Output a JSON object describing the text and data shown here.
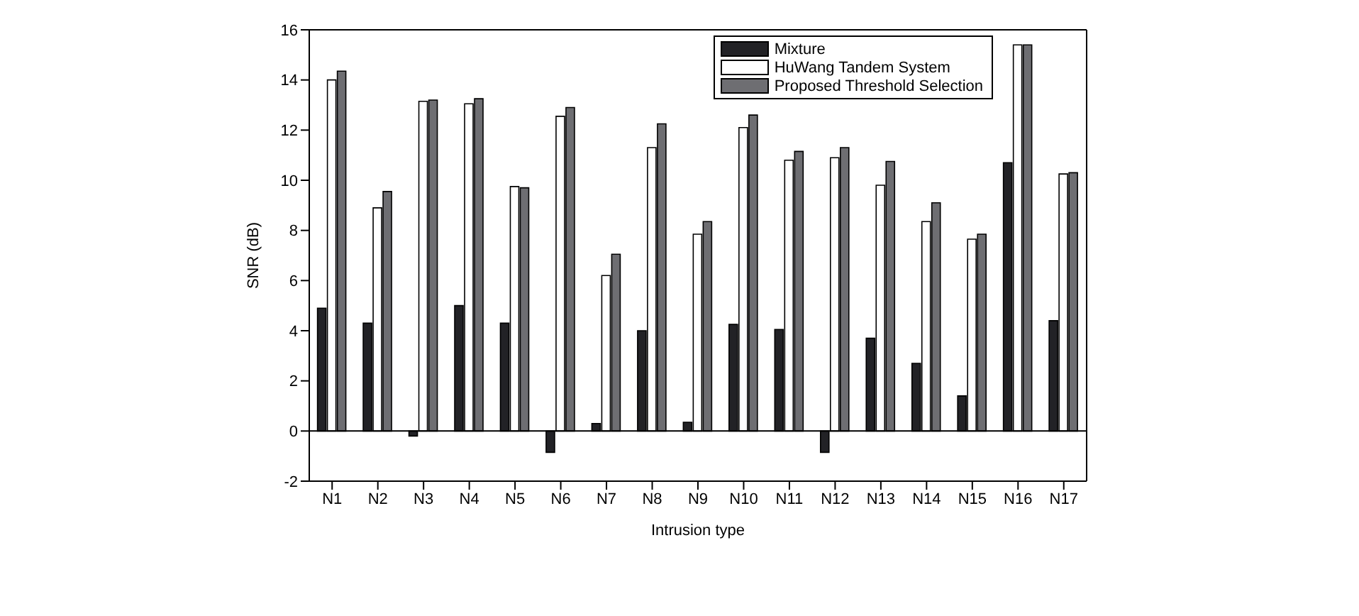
{
  "chart_data": {
    "type": "bar",
    "xlabel": "Intrusion type",
    "ylabel": "SNR (dB)",
    "categories": [
      "N1",
      "N2",
      "N3",
      "N4",
      "N5",
      "N6",
      "N7",
      "N8",
      "N9",
      "N10",
      "N11",
      "N12",
      "N13",
      "N14",
      "N15",
      "N16",
      "N17"
    ],
    "series": [
      {
        "name": "Mixture",
        "color": "#222226",
        "values": [
          4.9,
          4.3,
          -0.2,
          5.0,
          4.3,
          -0.85,
          0.3,
          4.0,
          0.35,
          4.25,
          4.05,
          -0.85,
          3.7,
          2.7,
          1.4,
          10.7,
          4.4
        ]
      },
      {
        "name": "HuWang Tandem System",
        "color": "#ffffff",
        "values": [
          14.0,
          8.9,
          13.15,
          13.05,
          9.75,
          12.55,
          6.2,
          11.3,
          7.85,
          12.1,
          10.8,
          10.9,
          9.8,
          8.35,
          7.65,
          15.4,
          10.25
        ]
      },
      {
        "name": "Proposed Threshold Selection",
        "color": "#6e6e72",
        "values": [
          14.35,
          9.55,
          13.2,
          13.25,
          9.7,
          12.9,
          7.05,
          12.25,
          8.35,
          12.6,
          11.15,
          11.3,
          10.75,
          9.1,
          7.85,
          15.4,
          10.3
        ]
      }
    ],
    "ylim": [
      -2,
      16
    ],
    "yticks": [
      -2,
      0,
      2,
      4,
      6,
      8,
      10,
      12,
      14,
      16
    ],
    "ref_lines": [
      {
        "axis": "y",
        "value": 0,
        "color": "#000000"
      }
    ],
    "grid": false,
    "legend": "top right"
  }
}
